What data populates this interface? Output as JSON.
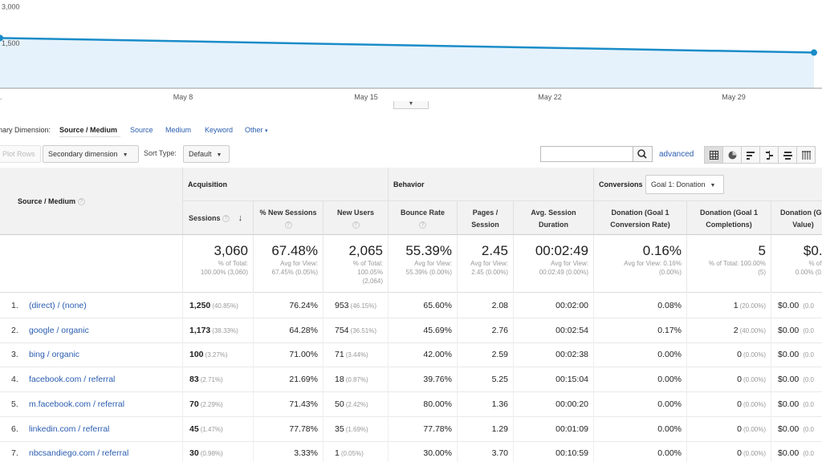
{
  "chart_data": {
    "type": "line",
    "x": [
      "May 1",
      "May 31"
    ],
    "values": [
      2050,
      1455
    ],
    "ytick_labels": [
      "3,000",
      "1,500"
    ],
    "ylim": [
      0,
      3600
    ],
    "xtick_labels": [
      ".",
      "May 8",
      "May 15",
      "May 22",
      "May 29"
    ],
    "color": "#1a8cc8",
    "fill": "#e6f2fb"
  },
  "dimension": {
    "label": "nary Dimension:",
    "active": "Source / Medium",
    "links": [
      "Source",
      "Medium",
      "Keyword"
    ],
    "other": "Other",
    "other_caret": "▾"
  },
  "toolbar": {
    "plot_rows": "Plot Rows",
    "secondary": "Secondary dimension",
    "sort_label": "Sort Type:",
    "sort_value": "Default",
    "caret": "▼",
    "advanced": "advanced"
  },
  "table": {
    "src_header": "Source / Medium",
    "groups": {
      "acquisition": "Acquisition",
      "behavior": "Behavior",
      "conversions": "Conversions",
      "goal_select": "Goal 1: Donation"
    },
    "columns": [
      "Sessions",
      "% New Sessions",
      "New Users",
      "Bounce Rate",
      "Pages / Session",
      "Avg. Session Duration",
      "Donation (Goal 1 Conversion Rate)",
      "Donation (Goal 1 Completions)",
      "Donation (Goal 1 Value)"
    ],
    "columns_display": [
      [
        "Sessions"
      ],
      [
        "% New Sessions"
      ],
      [
        "New Users"
      ],
      [
        "Bounce Rate"
      ],
      [
        "Pages /",
        "Session"
      ],
      [
        "Avg. Session",
        "Duration"
      ],
      [
        "Donation (Goal 1",
        "Conversion Rate)"
      ],
      [
        "Donation (Goal 1",
        "Completions)"
      ],
      [
        "Donation (Go",
        "Value)"
      ]
    ],
    "totals": [
      {
        "big": "3,060",
        "sub": [
          "% of Total:",
          "100.00% (3,060)"
        ]
      },
      {
        "big": "67.48%",
        "sub": [
          "Avg for View:",
          "67.45% (0.05%)"
        ]
      },
      {
        "big": "2,065",
        "sub": [
          "% of Total:",
          "100.05%",
          "(2,064)"
        ]
      },
      {
        "big": "55.39%",
        "sub": [
          "Avg for View:",
          "55.39% (0.00%)"
        ]
      },
      {
        "big": "2.45",
        "sub": [
          "Avg for View:",
          "2.45 (0.00%)"
        ]
      },
      {
        "big": "00:02:49",
        "sub": [
          "Avg for View:",
          "00:02:49 (0.00%)"
        ]
      },
      {
        "big": "0.16%",
        "sub": [
          "Avg for View: 0.16%",
          "(0.00%)"
        ]
      },
      {
        "big": "5",
        "sub": [
          "% of Total: 100.00%",
          "(5)"
        ]
      },
      {
        "big": "$0.0",
        "sub": [
          "% of To",
          "0.00% (0.00"
        ]
      }
    ],
    "rows": [
      {
        "idx": "1.",
        "src": "(direct) / (none)",
        "sessions": "1,250",
        "sess_pct": "(40.85%)",
        "new_sess": "76.24%",
        "new_users": "953",
        "nu_pct": "(46.15%)",
        "bounce": "65.60%",
        "pages": "2.08",
        "dur": "00:02:00",
        "conv": "0.08%",
        "comp": "1",
        "comp_pct": "(20.00%)",
        "value": "$0.00",
        "val_pct": "(0.0"
      },
      {
        "idx": "2.",
        "src": "google / organic",
        "sessions": "1,173",
        "sess_pct": "(38.33%)",
        "new_sess": "64.28%",
        "new_users": "754",
        "nu_pct": "(36.51%)",
        "bounce": "45.69%",
        "pages": "2.76",
        "dur": "00:02:54",
        "conv": "0.17%",
        "comp": "2",
        "comp_pct": "(40.00%)",
        "value": "$0.00",
        "val_pct": "(0.0"
      },
      {
        "idx": "3.",
        "src": "bing / organic",
        "sessions": "100",
        "sess_pct": "(3.27%)",
        "new_sess": "71.00%",
        "new_users": "71",
        "nu_pct": "(3.44%)",
        "bounce": "42.00%",
        "pages": "2.59",
        "dur": "00:02:38",
        "conv": "0.00%",
        "comp": "0",
        "comp_pct": "(0.00%)",
        "value": "$0.00",
        "val_pct": "(0.0"
      },
      {
        "idx": "4.",
        "src": "facebook.com / referral",
        "sessions": "83",
        "sess_pct": "(2.71%)",
        "new_sess": "21.69%",
        "new_users": "18",
        "nu_pct": "(0.87%)",
        "bounce": "39.76%",
        "pages": "5.25",
        "dur": "00:15:04",
        "conv": "0.00%",
        "comp": "0",
        "comp_pct": "(0.00%)",
        "value": "$0.00",
        "val_pct": "(0.0"
      },
      {
        "idx": "5.",
        "src": "m.facebook.com / referral",
        "sessions": "70",
        "sess_pct": "(2.29%)",
        "new_sess": "71.43%",
        "new_users": "50",
        "nu_pct": "(2.42%)",
        "bounce": "80.00%",
        "pages": "1.36",
        "dur": "00:00:20",
        "conv": "0.00%",
        "comp": "0",
        "comp_pct": "(0.00%)",
        "value": "$0.00",
        "val_pct": "(0.0"
      },
      {
        "idx": "6.",
        "src": "linkedin.com / referral",
        "sessions": "45",
        "sess_pct": "(1.47%)",
        "new_sess": "77.78%",
        "new_users": "35",
        "nu_pct": "(1.69%)",
        "bounce": "77.78%",
        "pages": "1.29",
        "dur": "00:01:09",
        "conv": "0.00%",
        "comp": "0",
        "comp_pct": "(0.00%)",
        "value": "$0.00",
        "val_pct": "(0.0"
      },
      {
        "idx": "7.",
        "src": "nbcsandiego.com / referral",
        "sessions": "30",
        "sess_pct": "(0.98%)",
        "new_sess": "3.33%",
        "new_users": "1",
        "nu_pct": "(0.05%)",
        "bounce": "30.00%",
        "pages": "3.70",
        "dur": "00:10:59",
        "conv": "0.00%",
        "comp": "0",
        "comp_pct": "(0.00%)",
        "value": "$0.00",
        "val_pct": "(0.0"
      }
    ]
  },
  "icons": {
    "search": "magnifier-icon",
    "sort": "sort-desc-arrow-icon"
  }
}
